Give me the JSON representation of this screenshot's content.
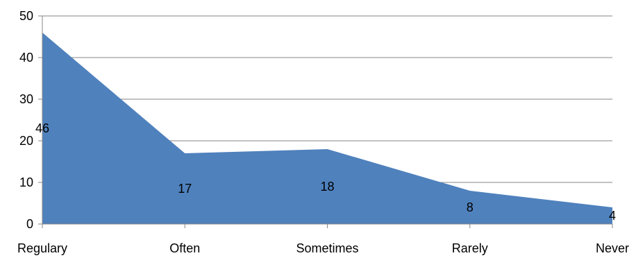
{
  "chart_data": {
    "type": "area",
    "categories": [
      "Regulary",
      "Often",
      "Sometimes",
      "Rarely",
      "Never"
    ],
    "values": [
      46,
      17,
      18,
      8,
      4
    ],
    "data_labels": [
      "46",
      "17",
      "18",
      "8",
      "4"
    ],
    "ylim": [
      0,
      50
    ],
    "yticks": [
      0,
      10,
      20,
      30,
      40,
      50
    ],
    "grid": true,
    "legend": "none",
    "colors": {
      "area": "#4F81BD",
      "grid": "#868686",
      "axis": "#868686"
    }
  }
}
